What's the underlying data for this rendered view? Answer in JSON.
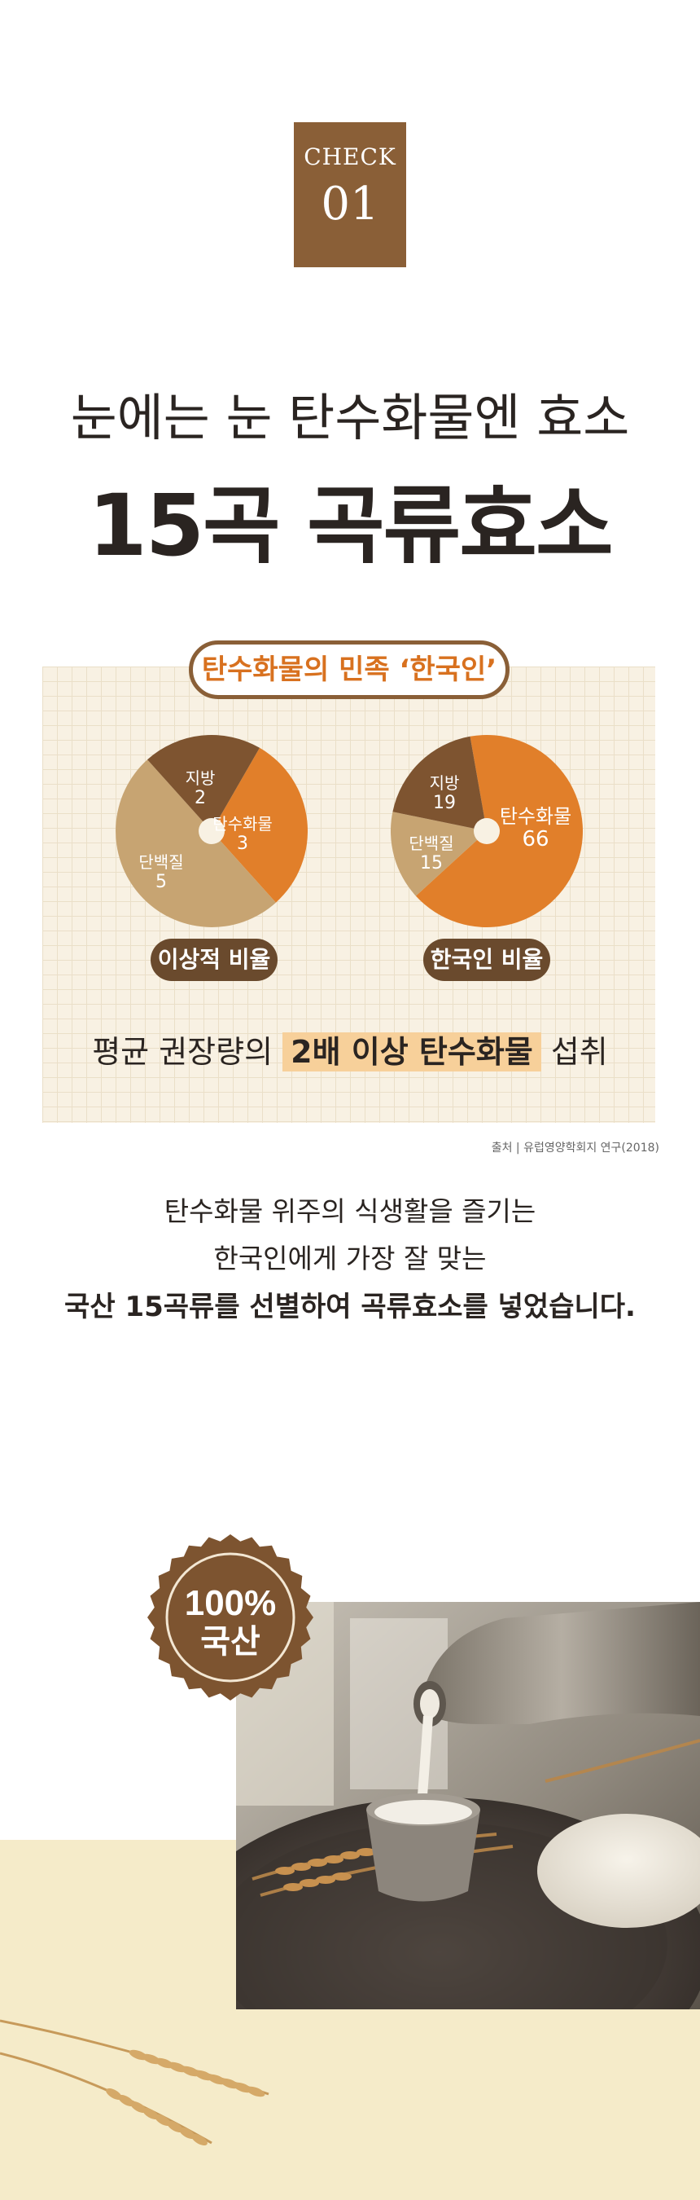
{
  "badge": {
    "label": "CHECK",
    "number": "01"
  },
  "title": {
    "line1": "눈에는 눈 탄수화물엔 효소",
    "line2": "15곡 곡류효소"
  },
  "panel": {
    "heading": "탄수화물의 민족 ‘한국인’",
    "ideal_label": "이상적 비율",
    "korean_label": "한국인 비율",
    "summary_prefix": "평균 권장량의 ",
    "summary_highlight": "2배 이상 탄수화물",
    "summary_suffix": " 섭취"
  },
  "chart_data": [
    {
      "type": "pie",
      "title": "이상적 비율",
      "categories": [
        "탄수화물",
        "단백질",
        "지방"
      ],
      "values": [
        3,
        5,
        2
      ],
      "colors": [
        "#e17f2a",
        "#c7a472",
        "#7e5430"
      ]
    },
    {
      "type": "pie",
      "title": "한국인 비율",
      "categories": [
        "탄수화물",
        "단백질",
        "지방"
      ],
      "values": [
        66,
        15,
        19
      ],
      "colors": [
        "#e17f2a",
        "#c7a472",
        "#7e5430"
      ]
    }
  ],
  "source": "출처 | 유럽영양학회지 연구(2018)",
  "description": {
    "line1": "탄수화물 위주의 식생활을 즐기는",
    "line2": "한국인에게 가장 잘 맞는",
    "line3": "국산 15곡류를 선별하여 곡류효소를 넣었습니다."
  },
  "seal": {
    "line1": "100%",
    "line2": "국산"
  },
  "colors": {
    "brand_brown": "#8a5f37",
    "accent_orange": "#e17f2a",
    "highlight": "#f7d09a",
    "cream": "#f5ebc9"
  }
}
